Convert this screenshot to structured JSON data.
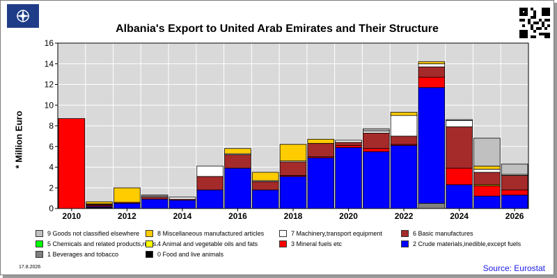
{
  "page": {
    "date": "17.8.2026",
    "source": "Source: Eurostat"
  },
  "chart_data": {
    "type": "bar",
    "stacked": true,
    "title": "Albania's Export to United Arab Emirates and Their Structure",
    "ylabel": "* Million Euro",
    "xlabel": "",
    "ylim": [
      0,
      16
    ],
    "yticks": [
      0,
      2,
      4,
      6,
      8,
      10,
      12,
      14,
      16
    ],
    "grid": true,
    "legend_position": "bottom",
    "categories": [
      2010,
      2011,
      2012,
      2013,
      2014,
      2015,
      2016,
      2017,
      2018,
      2019,
      2020,
      2021,
      2022,
      2023,
      2024,
      2025,
      2026
    ],
    "xtick_labels": [
      "2010",
      "2012",
      "2014",
      "2016",
      "2018",
      "2020",
      "2022",
      "2024",
      "2026"
    ],
    "series": [
      {
        "name": "0 Food and live animals",
        "color": "#000000",
        "values": [
          0,
          0.1,
          0,
          0,
          0,
          0,
          0,
          0,
          0,
          0,
          0,
          0,
          0,
          0,
          0,
          0,
          0
        ]
      },
      {
        "name": "1 Beverages and tobacco",
        "color": "#808080",
        "values": [
          0,
          0,
          0,
          0,
          0,
          0,
          0,
          0,
          0,
          0,
          0,
          0,
          0,
          0.5,
          0,
          0,
          0
        ]
      },
      {
        "name": "2 Crude materials,inedible,except fuels",
        "color": "#0000ff",
        "values": [
          0,
          0.1,
          0.5,
          0.9,
          0.8,
          1.8,
          3.9,
          1.8,
          3.1,
          4.9,
          5.9,
          5.5,
          6.1,
          11.2,
          2.3,
          1.2,
          1.3
        ]
      },
      {
        "name": "3 Mineral fuels etc",
        "color": "#ff0000",
        "values": [
          8.7,
          0.1,
          0,
          0,
          0,
          0,
          0,
          0,
          0.1,
          0.1,
          0.2,
          0.3,
          0.1,
          1.0,
          1.6,
          1.0,
          0.5
        ]
      },
      {
        "name": "4 Animal and vegetable oils and fats",
        "color": "#ffff00",
        "values": [
          0,
          0,
          0,
          0,
          0,
          0,
          0,
          0,
          0,
          0,
          0,
          0,
          0,
          0,
          0,
          0.1,
          0
        ]
      },
      {
        "name": "5 Chemicals and related products,n.e.s.",
        "color": "#00ff00",
        "values": [
          0,
          0,
          0,
          0,
          0,
          0,
          0,
          0,
          0,
          0,
          0,
          0,
          0,
          0,
          0,
          0,
          0
        ]
      },
      {
        "name": "6 Basic manufactures",
        "color": "#a52a2a",
        "values": [
          0,
          0.1,
          0.1,
          0.2,
          0.1,
          1.3,
          1.3,
          0.8,
          1.3,
          1.3,
          0.3,
          1.5,
          0.8,
          1.0,
          4.0,
          1.2,
          1.4
        ]
      },
      {
        "name": "7 Machinery,transport equipment",
        "color": "#ffffff",
        "values": [
          0,
          0.05,
          0,
          0.1,
          0.2,
          1.0,
          0.1,
          0.1,
          0.1,
          0,
          0.2,
          0.2,
          2.0,
          0.3,
          0.6,
          0.3,
          0.1
        ]
      },
      {
        "name": "8 Miscellaneous manufactured articles",
        "color": "#ffcc00",
        "values": [
          0,
          0.2,
          1.4,
          0,
          0,
          0,
          0.5,
          0.8,
          1.6,
          0.4,
          0,
          0,
          0.3,
          0.2,
          0,
          0.3,
          0
        ]
      },
      {
        "name": "9 Goods not classified elsewhere",
        "color": "#c0c0c0",
        "values": [
          0,
          0,
          0,
          0.1,
          0,
          0,
          0,
          0,
          0,
          0,
          0,
          0.2,
          0,
          0,
          0.1,
          2.7,
          1.0
        ]
      }
    ]
  },
  "legend": [
    {
      "name": "9 Goods not classified elsewhere",
      "color": "#c0c0c0"
    },
    {
      "name": "8 Miscellaneous manufactured articles",
      "color": "#ffcc00"
    },
    {
      "name": "7 Machinery,transport equipment",
      "color": "#ffffff"
    },
    {
      "name": "6 Basic manufactures",
      "color": "#a52a2a"
    },
    {
      "name": "5 Chemicals and related products,n.e.s.",
      "color": "#00ff00"
    },
    {
      "name": "4 Animal and vegetable oils and fats",
      "color": "#ffff00"
    },
    {
      "name": "3 Mineral fuels etc",
      "color": "#ff0000"
    },
    {
      "name": "2 Crude materials,inedible,except fuels",
      "color": "#0000ff"
    },
    {
      "name": "1 Beverages and tobacco",
      "color": "#808080"
    },
    {
      "name": "0 Food and live animals",
      "color": "#000000"
    }
  ],
  "icons": {
    "logo": "nato-compass-logo",
    "qr": "qr-code"
  }
}
